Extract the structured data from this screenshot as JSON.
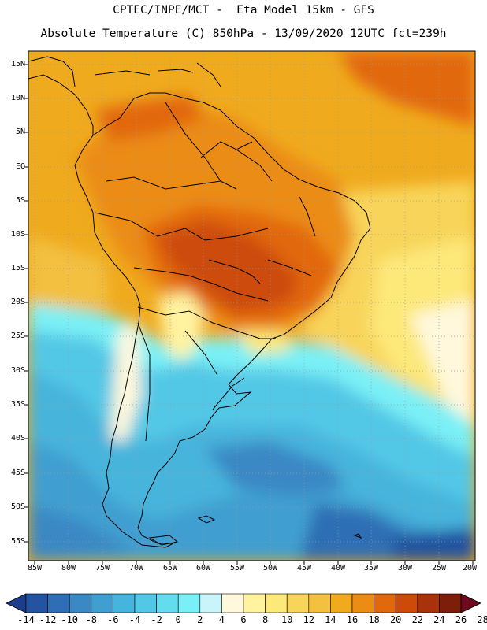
{
  "header": {
    "line1": "CPTEC/INPE/MCT -  Eta Model 15km - GFS",
    "line2": "Absolute Temperature (C) 850hPa - 13/09/2020 12UTC fct=239h"
  },
  "lat_labels": [
    "15N",
    "10N",
    "5N",
    "EQ",
    "5S",
    "10S",
    "15S",
    "20S",
    "25S",
    "30S",
    "35S",
    "40S",
    "45S",
    "50S",
    "55S"
  ],
  "lon_labels": [
    "85W",
    "80W",
    "75W",
    "70W",
    "65W",
    "60W",
    "55W",
    "50W",
    "45W",
    "40W",
    "35W",
    "30W",
    "25W",
    "20W"
  ],
  "colorbar": {
    "labels": [
      "-14",
      "-12",
      "-10",
      "-8",
      "-6",
      "-4",
      "-2",
      "0",
      "2",
      "4",
      "6",
      "8",
      "10",
      "12",
      "14",
      "16",
      "18",
      "20",
      "22",
      "24",
      "26",
      "28"
    ],
    "colors": [
      "#1e3c8c",
      "#2453a0",
      "#2d6eb4",
      "#3a88c4",
      "#3f9fd0",
      "#46b4dc",
      "#52c8e6",
      "#62dcee",
      "#7af0f6",
      "#c8f4fa",
      "#fff8dc",
      "#fff3a0",
      "#fde87a",
      "#f8d55a",
      "#f3c040",
      "#f0aa1e",
      "#eb8c14",
      "#e2680e",
      "#cc4b0a",
      "#a8320a",
      "#7d1e0a",
      "#6e0a1e"
    ]
  },
  "legend_icons": [
    "colorbar-left-arrow-icon",
    "colorbar-right-arrow-icon"
  ]
}
